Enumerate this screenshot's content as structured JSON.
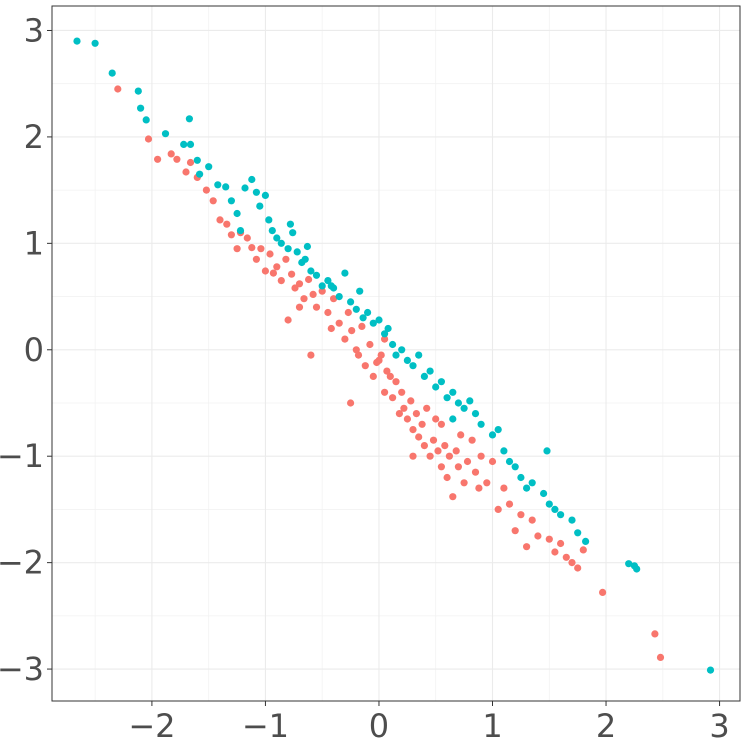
{
  "chart_data": {
    "type": "scatter",
    "title": "",
    "xlabel": "",
    "ylabel": "",
    "xlim": [
      -2.88,
      3.18
    ],
    "ylim": [
      -3.3,
      3.23
    ],
    "grid": true,
    "legend": "none",
    "x_ticks": [
      -2,
      -1,
      0,
      1,
      2,
      3
    ],
    "x_tick_labels": [
      "−2",
      "−1",
      "0",
      "1",
      "2",
      "3"
    ],
    "y_ticks": [
      -3,
      -2,
      -1,
      0,
      1,
      2,
      3
    ],
    "y_tick_labels": [
      "−3",
      "−2",
      "−1",
      "0",
      "1",
      "2",
      "3"
    ],
    "series": [
      {
        "color": "#F8766D",
        "points": [
          [
            -2.3,
            2.45
          ],
          [
            -2.03,
            1.98
          ],
          [
            -1.95,
            1.79
          ],
          [
            -1.83,
            1.84
          ],
          [
            -1.78,
            1.79
          ],
          [
            -1.7,
            1.67
          ],
          [
            -1.66,
            1.76
          ],
          [
            -1.6,
            1.62
          ],
          [
            -1.52,
            1.5
          ],
          [
            -1.46,
            1.4
          ],
          [
            -1.4,
            1.22
          ],
          [
            -1.34,
            1.18
          ],
          [
            -1.3,
            1.08
          ],
          [
            -1.25,
            0.95
          ],
          [
            -1.22,
            1.1
          ],
          [
            -1.16,
            1.05
          ],
          [
            -1.12,
            0.96
          ],
          [
            -1.08,
            0.85
          ],
          [
            -1.04,
            0.95
          ],
          [
            -1.0,
            0.74
          ],
          [
            -0.96,
            0.9
          ],
          [
            -0.93,
            0.72
          ],
          [
            -0.9,
            0.78
          ],
          [
            -0.86,
            0.65
          ],
          [
            -0.82,
            0.85
          ],
          [
            -0.8,
            0.28
          ],
          [
            -0.77,
            0.71
          ],
          [
            -0.74,
            0.58
          ],
          [
            -0.7,
            0.62
          ],
          [
            -0.66,
            0.48
          ],
          [
            -0.62,
            0.66
          ],
          [
            -0.58,
            0.52
          ],
          [
            -0.55,
            0.4
          ],
          [
            -0.5,
            0.55
          ],
          [
            -0.45,
            0.35
          ],
          [
            -0.42,
            0.2
          ],
          [
            -0.4,
            0.48
          ],
          [
            -0.35,
            0.25
          ],
          [
            -0.3,
            0.1
          ],
          [
            -0.27,
            0.35
          ],
          [
            -0.24,
            0.18
          ],
          [
            -0.2,
            0.0
          ],
          [
            -0.18,
            -0.05
          ],
          [
            -0.15,
            0.22
          ],
          [
            -0.12,
            -0.15
          ],
          [
            -0.08,
            0.05
          ],
          [
            -0.05,
            -0.25
          ],
          [
            -0.02,
            -0.12
          ],
          [
            0.0,
            -0.1
          ],
          [
            0.02,
            -0.05
          ],
          [
            0.05,
            0.1
          ],
          [
            0.07,
            -0.2
          ],
          [
            0.1,
            -0.25
          ],
          [
            0.12,
            -0.45
          ],
          [
            0.15,
            -0.3
          ],
          [
            0.18,
            -0.6
          ],
          [
            0.2,
            -0.4
          ],
          [
            0.22,
            -0.55
          ],
          [
            0.25,
            -0.65
          ],
          [
            0.28,
            -0.48
          ],
          [
            0.3,
            -0.75
          ],
          [
            0.33,
            -0.6
          ],
          [
            0.35,
            -0.82
          ],
          [
            0.38,
            -0.7
          ],
          [
            0.4,
            -0.9
          ],
          [
            0.42,
            -0.55
          ],
          [
            0.45,
            -1.0
          ],
          [
            0.48,
            -0.85
          ],
          [
            0.5,
            -0.65
          ],
          [
            0.52,
            -0.95
          ],
          [
            0.55,
            -1.1
          ],
          [
            0.58,
            -0.9
          ],
          [
            0.6,
            -1.2
          ],
          [
            0.62,
            -1.0
          ],
          [
            0.65,
            -1.38
          ],
          [
            0.68,
            -0.95
          ],
          [
            0.7,
            -1.1
          ],
          [
            0.72,
            -0.8
          ],
          [
            0.75,
            -1.25
          ],
          [
            0.78,
            -1.05
          ],
          [
            0.82,
            -0.85
          ],
          [
            0.85,
            -1.15
          ],
          [
            0.88,
            -1.3
          ],
          [
            0.9,
            -1.0
          ],
          [
            0.95,
            -1.25
          ],
          [
            1.0,
            -1.05
          ],
          [
            1.05,
            -1.5
          ],
          [
            1.1,
            -1.3
          ],
          [
            1.15,
            -1.45
          ],
          [
            1.2,
            -1.7
          ],
          [
            1.25,
            -1.55
          ],
          [
            1.3,
            -1.85
          ],
          [
            1.35,
            -1.6
          ],
          [
            1.4,
            -1.75
          ],
          [
            1.5,
            -1.78
          ],
          [
            1.55,
            -1.9
          ],
          [
            1.6,
            -1.82
          ],
          [
            1.65,
            -1.95
          ],
          [
            1.7,
            -2.0
          ],
          [
            1.75,
            -2.05
          ],
          [
            1.8,
            -1.88
          ],
          [
            -0.25,
            -0.5
          ],
          [
            -0.6,
            -0.05
          ],
          [
            0.05,
            -0.4
          ],
          [
            0.3,
            -1.0
          ],
          [
            0.55,
            -0.7
          ],
          [
            -0.7,
            0.4
          ],
          [
            1.97,
            -2.28
          ],
          [
            2.43,
            -2.67
          ],
          [
            2.48,
            -2.89
          ]
        ]
      },
      {
        "color": "#00BFC4",
        "points": [
          [
            -2.66,
            2.9
          ],
          [
            -2.5,
            2.88
          ],
          [
            -2.35,
            2.6
          ],
          [
            -2.12,
            2.43
          ],
          [
            -2.1,
            2.27
          ],
          [
            -2.05,
            2.16
          ],
          [
            -1.88,
            2.03
          ],
          [
            -1.72,
            1.93
          ],
          [
            -1.66,
            1.93
          ],
          [
            -1.67,
            2.17
          ],
          [
            -1.6,
            1.78
          ],
          [
            -1.58,
            1.65
          ],
          [
            -1.5,
            1.72
          ],
          [
            -1.42,
            1.55
          ],
          [
            -1.35,
            1.53
          ],
          [
            -1.3,
            1.4
          ],
          [
            -1.25,
            1.28
          ],
          [
            -1.18,
            1.52
          ],
          [
            -1.12,
            1.6
          ],
          [
            -1.08,
            1.48
          ],
          [
            -1.05,
            1.35
          ],
          [
            -1.0,
            1.45
          ],
          [
            -0.97,
            1.22
          ],
          [
            -0.94,
            1.12
          ],
          [
            -0.9,
            1.05
          ],
          [
            -0.86,
            1.0
          ],
          [
            -0.8,
            0.95
          ],
          [
            -0.76,
            1.1
          ],
          [
            -0.72,
            0.92
          ],
          [
            -0.68,
            0.82
          ],
          [
            -0.65,
            0.85
          ],
          [
            -0.6,
            0.74
          ],
          [
            -0.55,
            0.7
          ],
          [
            -0.5,
            0.6
          ],
          [
            -0.45,
            0.65
          ],
          [
            -0.4,
            0.58
          ],
          [
            -0.35,
            0.5
          ],
          [
            -0.3,
            0.72
          ],
          [
            -0.25,
            0.45
          ],
          [
            -0.2,
            0.38
          ],
          [
            -0.17,
            0.55
          ],
          [
            -0.14,
            0.3
          ],
          [
            -0.1,
            0.35
          ],
          [
            -0.05,
            0.25
          ],
          [
            0.0,
            0.28
          ],
          [
            0.05,
            0.15
          ],
          [
            0.08,
            0.2
          ],
          [
            0.12,
            0.05
          ],
          [
            0.15,
            -0.05
          ],
          [
            0.2,
            0.0
          ],
          [
            0.25,
            -0.1
          ],
          [
            0.3,
            -0.15
          ],
          [
            0.35,
            -0.05
          ],
          [
            0.4,
            -0.25
          ],
          [
            0.45,
            -0.2
          ],
          [
            0.5,
            -0.35
          ],
          [
            0.55,
            -0.3
          ],
          [
            0.6,
            -0.45
          ],
          [
            0.65,
            -0.4
          ],
          [
            0.7,
            -0.5
          ],
          [
            0.75,
            -0.55
          ],
          [
            0.8,
            -0.48
          ],
          [
            0.85,
            -0.6
          ],
          [
            0.9,
            -0.7
          ],
          [
            1.0,
            -0.8
          ],
          [
            1.05,
            -0.75
          ],
          [
            1.1,
            -0.95
          ],
          [
            1.15,
            -1.05
          ],
          [
            1.2,
            -1.1
          ],
          [
            1.25,
            -1.2
          ],
          [
            1.3,
            -1.3
          ],
          [
            1.35,
            -1.25
          ],
          [
            1.45,
            -1.35
          ],
          [
            1.5,
            -1.45
          ],
          [
            1.55,
            -1.5
          ],
          [
            1.6,
            -1.55
          ],
          [
            1.7,
            -1.6
          ],
          [
            1.75,
            -1.72
          ],
          [
            1.82,
            -1.8
          ],
          [
            1.48,
            -0.95
          ],
          [
            -0.63,
            0.97
          ],
          [
            -0.78,
            1.18
          ],
          [
            -1.22,
            1.12
          ],
          [
            -0.42,
            0.6
          ],
          [
            0.65,
            -0.65
          ],
          [
            2.2,
            -2.01
          ],
          [
            2.25,
            -2.03
          ],
          [
            2.27,
            -2.06
          ],
          [
            2.92,
            -3.01
          ]
        ]
      }
    ]
  }
}
